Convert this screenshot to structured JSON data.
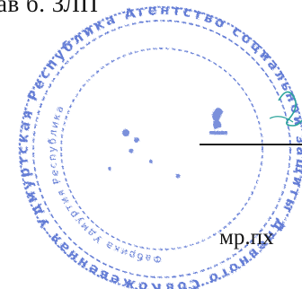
{
  "document": {
    "top_fragment": "ав б. ЗЛП",
    "signer_initials": "мр.пх"
  },
  "stamp": {
    "color": "#3c5ccb",
    "ring_text": "Кожевенная Удмуртская Республика Агентство социальной защиты Дневного Совета",
    "ring_text_inner": "Фабрика Удмуртия Республика",
    "shape": "round-seal"
  },
  "signature": {
    "color": "#2aa39a"
  }
}
